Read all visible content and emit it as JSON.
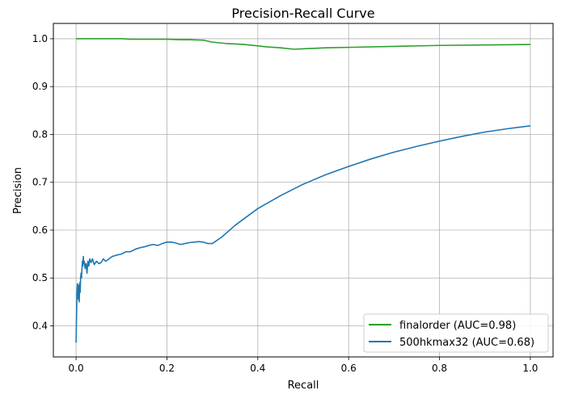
{
  "chart_data": {
    "type": "line",
    "title": "Precision-Recall Curve",
    "xlabel": "Recall",
    "ylabel": "Precision",
    "xlim": [
      -0.05,
      1.05
    ],
    "ylim": [
      0.335,
      1.032
    ],
    "xticks": [
      0.0,
      0.2,
      0.4,
      0.6,
      0.8,
      1.0
    ],
    "xtick_labels": [
      "0.0",
      "0.2",
      "0.4",
      "0.6",
      "0.8",
      "1.0"
    ],
    "yticks": [
      0.4,
      0.5,
      0.6,
      0.7,
      0.8,
      0.9,
      1.0
    ],
    "ytick_labels": [
      "0.4",
      "0.5",
      "0.6",
      "0.7",
      "0.8",
      "0.9",
      "1.0"
    ],
    "grid": true,
    "legend_position": "bottom-right",
    "series": [
      {
        "name": "finalorder (AUC=0.98)",
        "color": "#2ca02c",
        "x": [
          0.0,
          0.05,
          0.1,
          0.12,
          0.2,
          0.23,
          0.25,
          0.28,
          0.3,
          0.33,
          0.35,
          0.37,
          0.4,
          0.42,
          0.45,
          0.48,
          0.5,
          0.55,
          0.6,
          0.7,
          0.8,
          0.9,
          1.0
        ],
        "y": [
          1.0,
          1.0,
          1.0,
          0.999,
          0.999,
          0.998,
          0.998,
          0.997,
          0.993,
          0.99,
          0.989,
          0.988,
          0.985,
          0.983,
          0.981,
          0.978,
          0.979,
          0.981,
          0.982,
          0.984,
          0.986,
          0.987,
          0.988
        ]
      },
      {
        "name": "500hkmax32 (AUC=0.68)",
        "color": "#1f77b4",
        "x": [
          0.0,
          0.001,
          0.002,
          0.003,
          0.004,
          0.005,
          0.006,
          0.007,
          0.008,
          0.009,
          0.01,
          0.011,
          0.012,
          0.013,
          0.014,
          0.015,
          0.016,
          0.017,
          0.018,
          0.02,
          0.022,
          0.024,
          0.026,
          0.028,
          0.03,
          0.033,
          0.036,
          0.04,
          0.045,
          0.05,
          0.055,
          0.06,
          0.065,
          0.07,
          0.075,
          0.08,
          0.09,
          0.1,
          0.11,
          0.12,
          0.13,
          0.14,
          0.15,
          0.16,
          0.17,
          0.18,
          0.19,
          0.2,
          0.21,
          0.22,
          0.23,
          0.24,
          0.25,
          0.26,
          0.27,
          0.28,
          0.29,
          0.3,
          0.32,
          0.35,
          0.4,
          0.45,
          0.5,
          0.55,
          0.6,
          0.65,
          0.7,
          0.75,
          0.8,
          0.85,
          0.9,
          0.95,
          1.0
        ],
        "y": [
          0.365,
          0.42,
          0.47,
          0.488,
          0.473,
          0.455,
          0.485,
          0.45,
          0.49,
          0.47,
          0.5,
          0.51,
          0.5,
          0.52,
          0.535,
          0.525,
          0.545,
          0.53,
          0.535,
          0.52,
          0.53,
          0.51,
          0.535,
          0.525,
          0.54,
          0.532,
          0.54,
          0.528,
          0.535,
          0.53,
          0.532,
          0.54,
          0.535,
          0.538,
          0.542,
          0.545,
          0.548,
          0.55,
          0.555,
          0.555,
          0.56,
          0.563,
          0.565,
          0.568,
          0.57,
          0.568,
          0.572,
          0.575,
          0.575,
          0.573,
          0.57,
          0.572,
          0.574,
          0.575,
          0.576,
          0.575,
          0.572,
          0.572,
          0.585,
          0.61,
          0.645,
          0.672,
          0.696,
          0.716,
          0.733,
          0.749,
          0.763,
          0.775,
          0.786,
          0.796,
          0.805,
          0.812,
          0.818
        ]
      }
    ]
  }
}
